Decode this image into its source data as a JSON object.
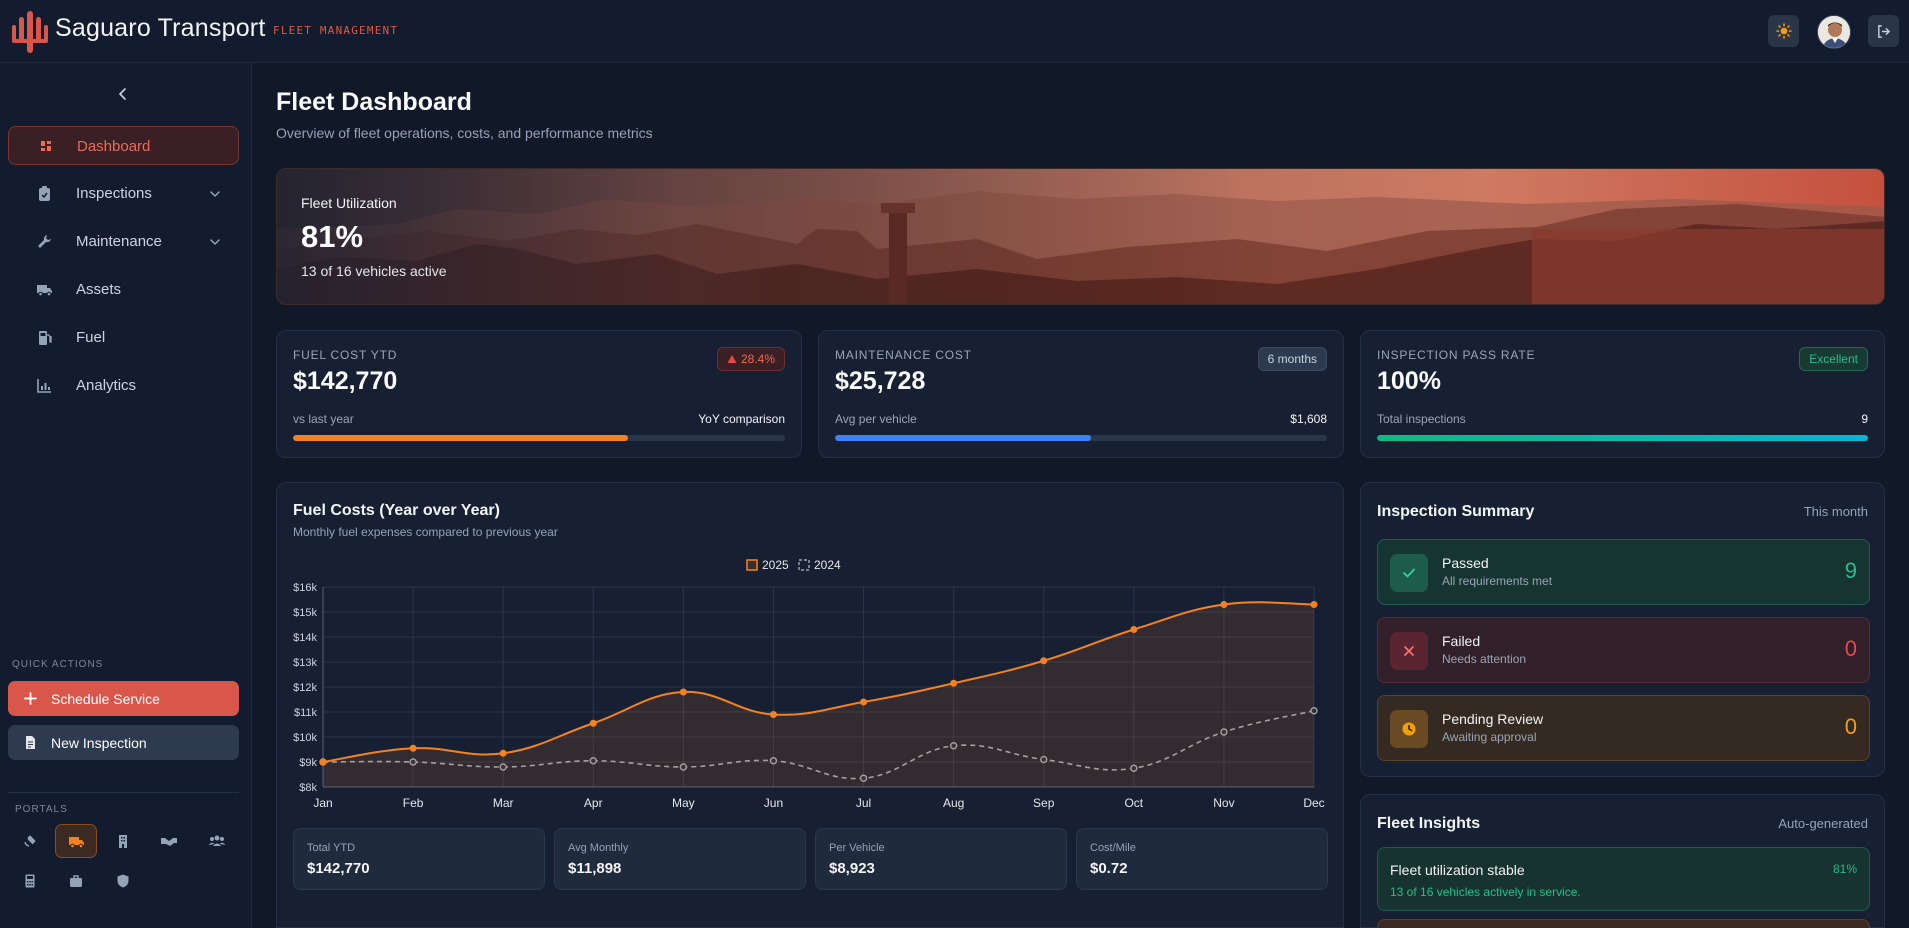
{
  "brand": {
    "name": "Saguaro Transport",
    "tagline": "FLEET MANAGEMENT"
  },
  "colors": {
    "accent": "#d9574a",
    "orange": "#f58220",
    "blue": "#3b82f6",
    "green": "#10c08a",
    "amber": "#f59e0b",
    "red": "#ef4444"
  },
  "topbar": {
    "icons": [
      "sun-icon",
      "user-avatar",
      "logout-icon"
    ]
  },
  "sidebar": {
    "items": [
      {
        "label": "Dashboard",
        "icon": "dashboard-icon",
        "active": true
      },
      {
        "label": "Inspections",
        "icon": "clipboard-icon",
        "expandable": true
      },
      {
        "label": "Maintenance",
        "icon": "wrench-icon",
        "expandable": true
      },
      {
        "label": "Assets",
        "icon": "truck-icon"
      },
      {
        "label": "Fuel",
        "icon": "fuel-pump-icon"
      },
      {
        "label": "Analytics",
        "icon": "chart-icon"
      }
    ],
    "quick_actions_title": "QUICK ACTIONS",
    "quick_actions": [
      {
        "label": "Schedule Service",
        "icon": "plus-icon"
      },
      {
        "label": "New Inspection",
        "icon": "document-icon"
      }
    ],
    "portals_title": "PORTALS",
    "portals": [
      "satellite-icon",
      "truck-icon",
      "building-icon",
      "handshake-icon",
      "users-icon",
      "calculator-icon",
      "briefcase-icon",
      "shield-icon"
    ]
  },
  "page": {
    "title": "Fleet Dashboard",
    "subtitle": "Overview of fleet operations, costs, and performance metrics"
  },
  "hero": {
    "label": "Fleet Utilization",
    "value": "81%",
    "sub": "13 of 16 vehicles active"
  },
  "kpis": [
    {
      "label": "FUEL COST YTD",
      "value": "$142,770",
      "badge": "28.4%",
      "foot_left": "vs last year",
      "foot_right": "YoY comparison",
      "fill": 0.68
    },
    {
      "label": "MAINTENANCE COST",
      "value": "$25,728",
      "badge": "6 months",
      "foot_left": "Avg per vehicle",
      "foot_right": "$1,608",
      "fill": 0.52
    },
    {
      "label": "INSPECTION PASS RATE",
      "value": "100%",
      "badge": "Excellent",
      "foot_left": "Total inspections",
      "foot_right": "9",
      "fill": 1.0
    }
  ],
  "fuel_chart": {
    "title": "Fuel Costs (Year over Year)",
    "subtitle": "Monthly fuel expenses compared to previous year",
    "stats": [
      {
        "label": "Total YTD",
        "value": "$142,770"
      },
      {
        "label": "Avg Monthly",
        "value": "$11,898"
      },
      {
        "label": "Per Vehicle",
        "value": "$8,923"
      },
      {
        "label": "Cost/Mile",
        "value": "$0.72"
      }
    ]
  },
  "chart_data": {
    "type": "line",
    "title": "Fuel Costs (Year over Year)",
    "categories": [
      "Jan",
      "Feb",
      "Mar",
      "Apr",
      "May",
      "Jun",
      "Jul",
      "Aug",
      "Sep",
      "Oct",
      "Nov",
      "Dec"
    ],
    "series": [
      {
        "name": "2025",
        "values": [
          9000,
          9550,
          9350,
          10550,
          11800,
          10900,
          11400,
          12150,
          13050,
          14300,
          15300,
          15300
        ],
        "color": "#f58220",
        "fill": true
      },
      {
        "name": "2024",
        "values": [
          9000,
          9000,
          8800,
          9050,
          8800,
          9050,
          8350,
          9650,
          9100,
          8750,
          10200,
          11050
        ],
        "color": "#9ca3af",
        "dashed": true
      }
    ],
    "y_ticks": [
      "$8k",
      "$9k",
      "$10k",
      "$11k",
      "$12k",
      "$13k",
      "$14k",
      "$15k",
      "$16k"
    ],
    "ylim": [
      8000,
      16000
    ],
    "legend": "top-center",
    "grid": true
  },
  "inspection_summary": {
    "title": "Inspection Summary",
    "meta": "This month",
    "rows": [
      {
        "title": "Passed",
        "sub": "All requirements met",
        "count": "9",
        "icon": "check-icon"
      },
      {
        "title": "Failed",
        "sub": "Needs attention",
        "count": "0",
        "icon": "x-icon"
      },
      {
        "title": "Pending Review",
        "sub": "Awaiting approval",
        "count": "0",
        "icon": "clock-icon"
      }
    ]
  },
  "insights": {
    "title": "Fleet Insights",
    "meta": "Auto-generated",
    "items": [
      {
        "title": "Fleet utilization stable",
        "sub": "13 of 16 vehicles actively in service.",
        "value": "81%"
      }
    ]
  }
}
